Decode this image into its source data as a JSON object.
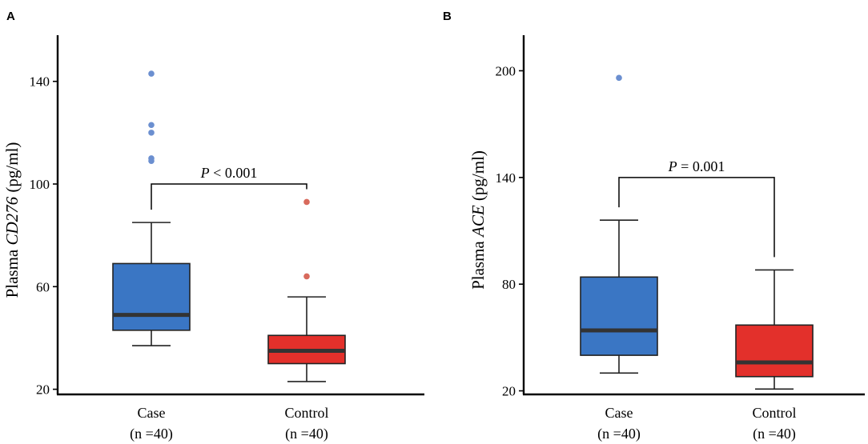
{
  "chart_data": [
    {
      "panel": "A",
      "type": "box",
      "ylabel_prefix": "Plasma ",
      "ylabel_italic": "CD276",
      "ylabel_suffix": " (pg/ml)",
      "ylim": [
        18,
        158
      ],
      "yticks": [
        20,
        60,
        100,
        140
      ],
      "categories": [
        {
          "name": "Case",
          "n": "(n =40)",
          "color": "#3a76c4",
          "outlier_color": "#6b8fd0",
          "min": 37,
          "q1": 43,
          "median": 49,
          "q3": 69,
          "max": 85,
          "outliers": [
            143,
            123,
            120,
            110,
            109
          ]
        },
        {
          "name": "Control",
          "n": "(n =40)",
          "color": "#e3302b",
          "outlier_color": "#d86a5c",
          "min": 23,
          "q1": 30,
          "median": 35,
          "q3": 41,
          "max": 56,
          "outliers": [
            93,
            64
          ]
        }
      ],
      "annotation": {
        "p_italic": "P",
        "text": " < 0.001",
        "y": 100
      }
    },
    {
      "panel": "B",
      "type": "box",
      "ylabel_prefix": "Plasma ",
      "ylabel_italic": "ACE",
      "ylabel_suffix": " (pg/ml)",
      "ylim": [
        18,
        220
      ],
      "yticks": [
        20,
        80,
        140,
        200
      ],
      "categories": [
        {
          "name": "Case",
          "n": "(n =40)",
          "color": "#3a76c4",
          "outlier_color": "#6b8fd0",
          "min": 30,
          "q1": 40,
          "median": 54,
          "q3": 84,
          "max": 116,
          "outliers": [
            196
          ]
        },
        {
          "name": "Control",
          "n": "(n =40)",
          "color": "#e3302b",
          "outlier_color": "#d86a5c",
          "min": 21,
          "q1": 28,
          "median": 36,
          "q3": 57,
          "max": 88,
          "outliers": []
        }
      ],
      "annotation": {
        "p_italic": "P",
        "text": " = 0.001",
        "y": 140
      }
    }
  ]
}
